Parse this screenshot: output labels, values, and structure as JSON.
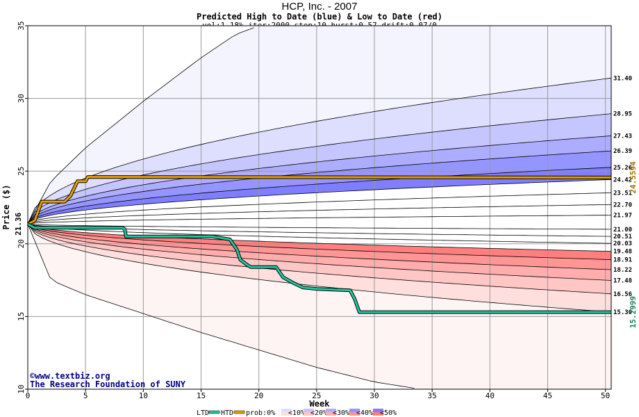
{
  "chart_data": {
    "type": "area",
    "title": "HCP, Inc. - 2007",
    "subtitle": "Predicted High to Date (blue) &  Low to Date (red)",
    "params": "vol:1.18% iter:2000 step:10 hurst:0.57 drift:0.07/0",
    "xlabel": "Week",
    "ylabel": "Price ($)",
    "xlim": [
      0,
      50.5
    ],
    "ylim": [
      10,
      35
    ],
    "x_ticks": [
      0,
      5,
      10,
      15,
      20,
      25,
      30,
      35,
      40,
      45,
      50
    ],
    "y_ticks": [
      10,
      15,
      20,
      25,
      30,
      35
    ],
    "grid": true,
    "start_price": 21.36,
    "start_label": "21.36",
    "upper_bound": [
      [
        0,
        21.36
      ],
      [
        2,
        24.3
      ],
      [
        5,
        26.6
      ],
      [
        10,
        29.8
      ],
      [
        15,
        32.8
      ],
      [
        18,
        34.4
      ],
      [
        20,
        35
      ]
    ],
    "lower_bound": [
      [
        0,
        21.36
      ],
      [
        2,
        17.5
      ],
      [
        5,
        16.5
      ],
      [
        10,
        15.2
      ],
      [
        15,
        13.9
      ],
      [
        20,
        12.7
      ],
      [
        25,
        11.5
      ],
      [
        30,
        10.5
      ],
      [
        34,
        10
      ]
    ],
    "quantile_lines": [
      {
        "end": 31.4,
        "label": "31.40"
      },
      {
        "end": 28.95,
        "label": "28.95"
      },
      {
        "end": 27.43,
        "label": "27.43"
      },
      {
        "end": 26.39,
        "label": "26.39"
      },
      {
        "end": 25.26,
        "label": "25.26"
      },
      {
        "end": 24.42,
        "label": "24.42"
      },
      {
        "end": 23.51,
        "label": "23.51"
      },
      {
        "end": 22.7,
        "label": "22.70"
      },
      {
        "end": 21.97,
        "label": "21.97"
      },
      {
        "end": 21.0,
        "label": "21.00"
      },
      {
        "end": 20.51,
        "label": "20.51"
      },
      {
        "end": 20.03,
        "label": "20.03"
      },
      {
        "end": 19.48,
        "label": "19.48"
      },
      {
        "end": 18.91,
        "label": "18.91"
      },
      {
        "end": 18.22,
        "label": "18.22"
      },
      {
        "end": 17.48,
        "label": "17.48"
      },
      {
        "end": 16.56,
        "label": "16.56"
      },
      {
        "end": 15.3,
        "label": "15.30"
      }
    ],
    "series": [
      {
        "name": "HTD",
        "color": "#e8a000",
        "points": [
          [
            0,
            21.36
          ],
          [
            0.6,
            21.6
          ],
          [
            1.2,
            22.9
          ],
          [
            2.2,
            22.9
          ],
          [
            3.2,
            22.9
          ],
          [
            3.7,
            23.3
          ],
          [
            4.3,
            24.3
          ],
          [
            5,
            24.3
          ],
          [
            5.2,
            24.6
          ],
          [
            50.5,
            24.56
          ]
        ],
        "end_label": "24.5594"
      },
      {
        "name": "LTD",
        "color": "#20c8a0",
        "points": [
          [
            0,
            21.36
          ],
          [
            0.6,
            21.1
          ],
          [
            8.2,
            21.1
          ],
          [
            8.4,
            21.0
          ],
          [
            8.5,
            20.5
          ],
          [
            16,
            20.5
          ],
          [
            17.5,
            20.3
          ],
          [
            18.1,
            19.6
          ],
          [
            18.4,
            18.9
          ],
          [
            18.9,
            18.6
          ],
          [
            19.3,
            18.4
          ],
          [
            21.5,
            18.4
          ],
          [
            22.1,
            17.7
          ],
          [
            23,
            17.3
          ],
          [
            23.8,
            17.0
          ],
          [
            25,
            16.9
          ],
          [
            27.9,
            16.8
          ],
          [
            28.3,
            16.2
          ],
          [
            28.7,
            15.3
          ],
          [
            50.5,
            15.3
          ]
        ],
        "end_label": "15.2999"
      }
    ],
    "legend": [
      "LTD",
      "HTD",
      "prob:0%",
      "<10%",
      "<20%",
      "<30%",
      "<40%",
      "<50%"
    ],
    "band_colors_blue": [
      "#f4f4ff",
      "#dedeff",
      "#c6c6ff",
      "#adadff",
      "#9595ff",
      "#7e7eff"
    ],
    "band_colors_red": [
      "#fff4f4",
      "#ffdede",
      "#ffc6c6",
      "#ffadad",
      "#ff9595",
      "#ff7e7e"
    ],
    "watermark": [
      "©www.textbiz.org",
      "The Research Foundation of SUNY"
    ]
  }
}
